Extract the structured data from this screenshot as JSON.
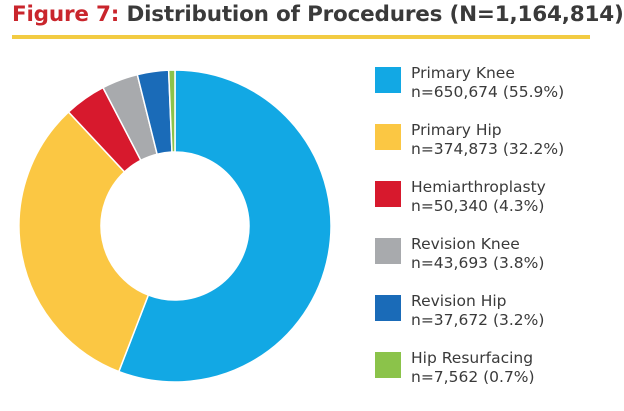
{
  "title": {
    "figure_label": "Figure 7:",
    "text": "Distribution of Procedures (N=1,164,814)"
  },
  "colors": {
    "title_red": "#c9252c",
    "rule_yellow": "#f2cb42"
  },
  "chart_data": {
    "type": "pie",
    "donut": true,
    "title": "Figure 7: Distribution of Procedures (N=1,164,814)",
    "total": 1164814,
    "legend_position": "right",
    "series": [
      {
        "name": "Primary Knee",
        "value": 650674,
        "percent": 55.9,
        "count_label": "n=650,674 (55.9%)",
        "color": "#12a8e4"
      },
      {
        "name": "Primary Hip",
        "value": 374873,
        "percent": 32.2,
        "count_label": "n=374,873 (32.2%)",
        "color": "#fbc743"
      },
      {
        "name": "Hemiarthroplasty",
        "value": 50340,
        "percent": 4.3,
        "count_label": "n=50,340 (4.3%)",
        "color": "#d7192d"
      },
      {
        "name": "Revision Knee",
        "value": 43693,
        "percent": 3.8,
        "count_label": "n=43,693 (3.8%)",
        "color": "#a8aaad"
      },
      {
        "name": "Revision Hip",
        "value": 37672,
        "percent": 3.2,
        "count_label": "n=37,672 (3.2%)",
        "color": "#1a6bb8"
      },
      {
        "name": "Hip Resurfacing",
        "value": 7562,
        "percent": 0.7,
        "count_label": "n=7,562 (0.7%)",
        "color": "#8bc34a"
      }
    ]
  }
}
